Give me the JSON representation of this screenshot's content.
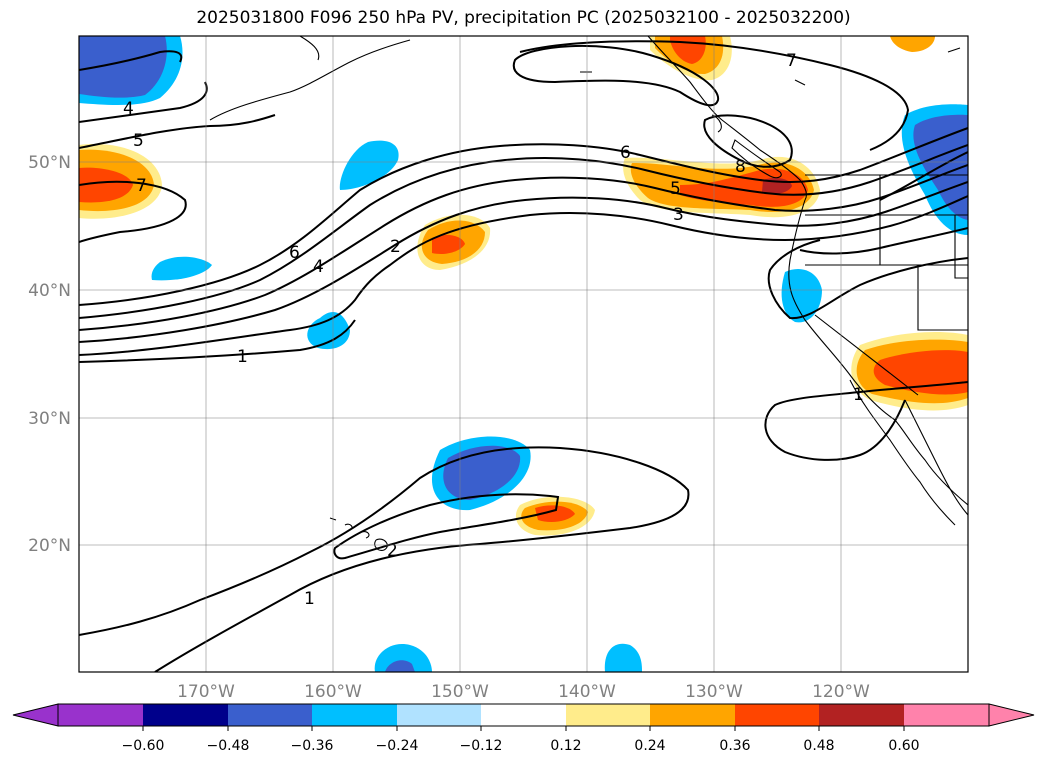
{
  "title": "2025031800 F096 250 hPa PV, precipitation PC (2025032100 - 2025032200)",
  "map": {
    "lon_ticks": [
      "170°W",
      "160°W",
      "150°W",
      "140°W",
      "130°W",
      "120°W"
    ],
    "lat_ticks": [
      "50°N",
      "40°N",
      "30°N",
      "20°N"
    ]
  },
  "contour_labels": [
    "4",
    "5",
    "7",
    "6",
    "4",
    "2",
    "1",
    "6",
    "5",
    "3",
    "8",
    "1",
    "2",
    "1",
    "7"
  ],
  "colorbar": {
    "ticks": [
      "−0.60",
      "−0.48",
      "−0.36",
      "−0.24",
      "−0.12",
      "0.12",
      "0.24",
      "0.36",
      "0.48",
      "0.60"
    ],
    "colors": [
      "#9932cc",
      "#00008b",
      "#3a5fcd",
      "#00bfff",
      "#b0e2ff",
      "#ffffff",
      "#ffec8b",
      "#ffa500",
      "#ff4500",
      "#b22222",
      "#ff82ab"
    ]
  }
}
